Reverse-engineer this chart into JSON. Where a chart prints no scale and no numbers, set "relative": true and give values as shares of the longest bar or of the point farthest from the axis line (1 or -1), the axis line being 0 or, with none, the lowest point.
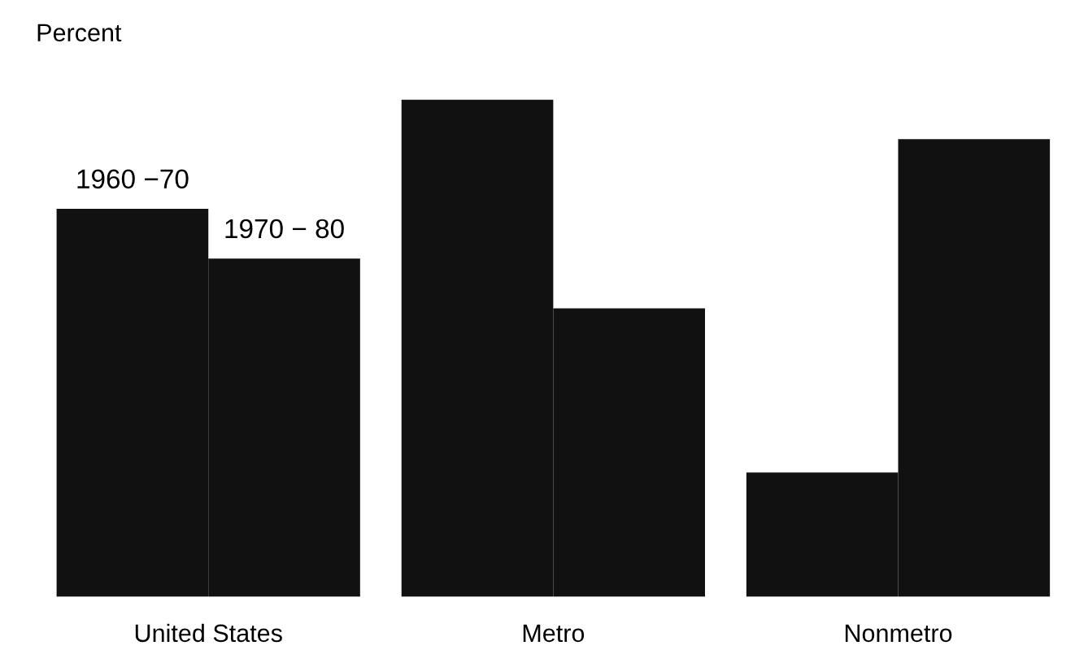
{
  "chart_data": {
    "type": "bar",
    "relative": true,
    "ylabel": "Percent",
    "categories": [
      "United States",
      "Metro",
      "Nonmetro"
    ],
    "series": [
      {
        "name": "1960 −70",
        "color": "#111111",
        "values": [
          0.78,
          1,
          0.25
        ]
      },
      {
        "name": "1970 − 80",
        "color": "#111111",
        "values": [
          0.68,
          0.58,
          0.92
        ]
      }
    ],
    "grid": false,
    "legend": false
  }
}
